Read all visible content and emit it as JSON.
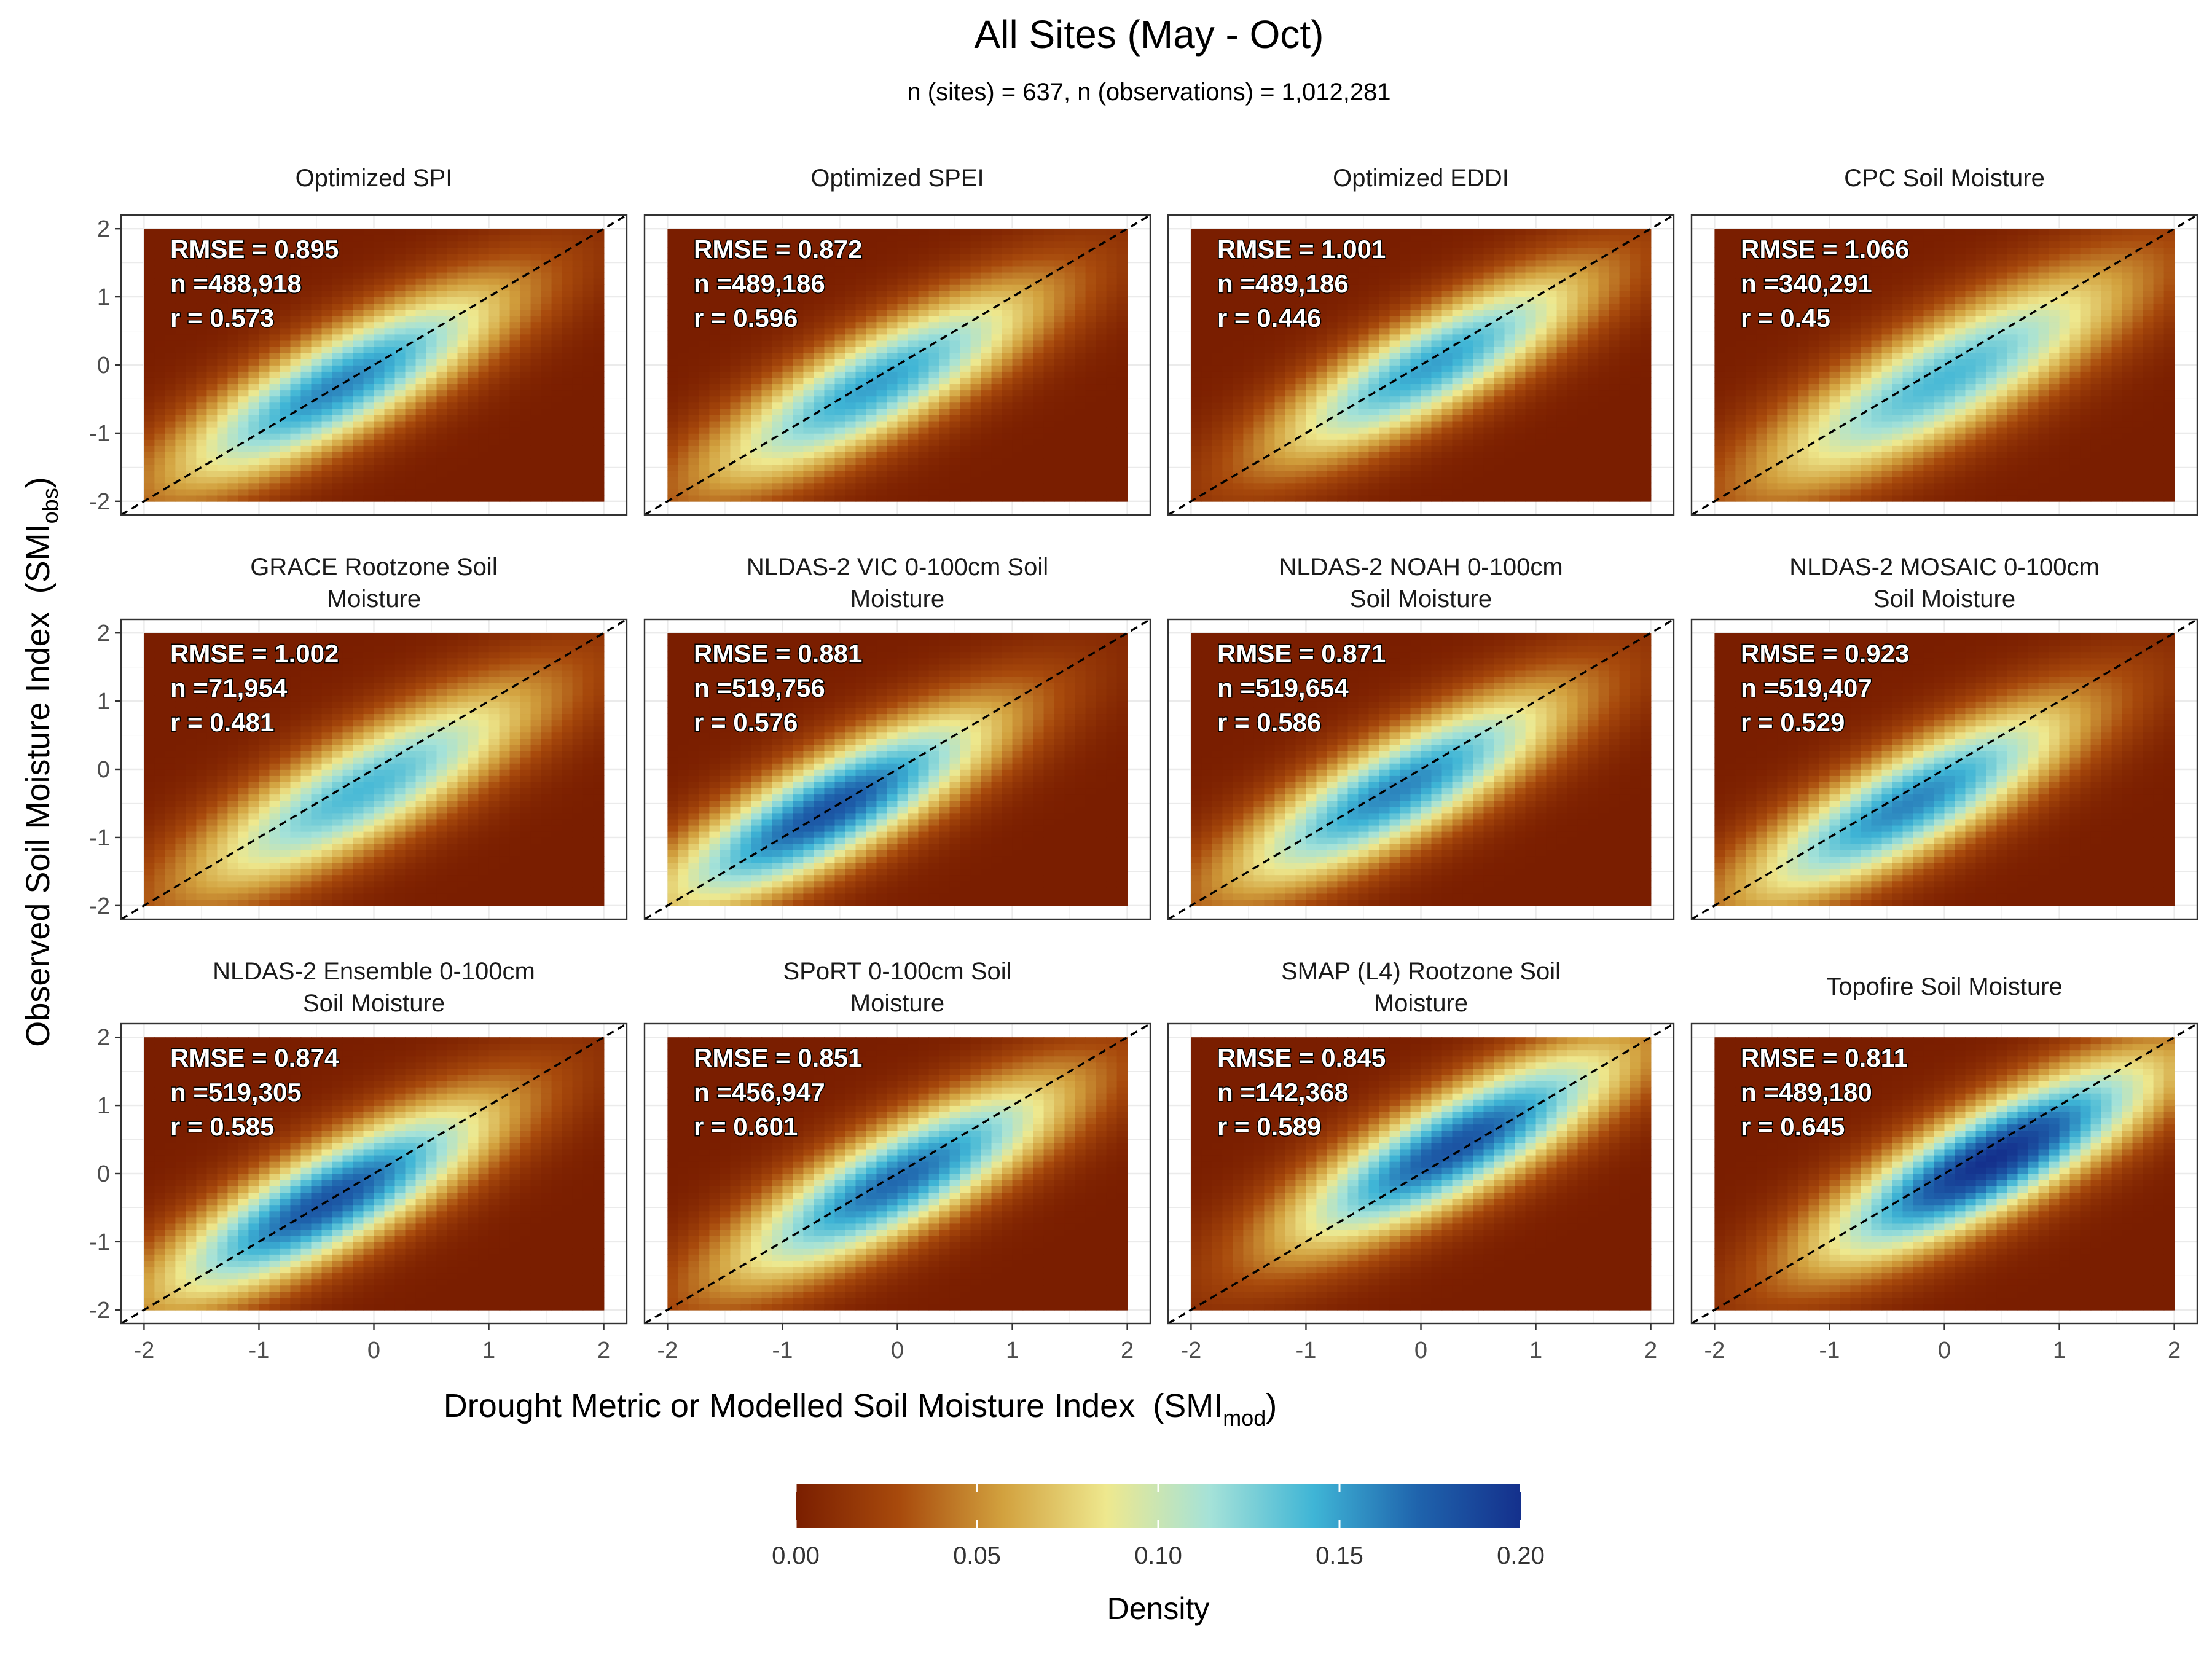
{
  "title": "All Sites (May - Oct)",
  "subtitle": "n (sites) = 637, n (observations) = 1,012,281",
  "x_axis_label": "Drought Metric or Modelled Soil Moisture Index",
  "x_axis_symbol": {
    "base": "SMI",
    "sub": "mod"
  },
  "y_axis_label": "Observed Soil Moisture Index",
  "y_axis_symbol": {
    "base": "SMI",
    "sub": "obs"
  },
  "stat_labels": {
    "rmse": "RMSE = ",
    "n": "n =",
    "r": "r = "
  },
  "legend": {
    "title": "Density",
    "ticks": [
      "0.00",
      "0.05",
      "0.10",
      "0.15",
      "0.20"
    ],
    "tick_values": [
      0,
      0.05,
      0.1,
      0.15,
      0.2
    ],
    "range": [
      0,
      0.2
    ],
    "colors": [
      "#7a1e00",
      "#a84a0c",
      "#d2a13e",
      "#eee88e",
      "#a5e2d8",
      "#3fb5d6",
      "#1f64ad",
      "#14308c"
    ],
    "placement": "bottom"
  },
  "chart_data": {
    "type": "heatmap",
    "x_ticks": [
      "-2",
      "-1",
      "0",
      "1",
      "2"
    ],
    "y_ticks": [
      "-2",
      "-1",
      "0",
      "1",
      "2"
    ],
    "xlim": [
      -2.2,
      2.2
    ],
    "ylim": [
      -2.2,
      2.2
    ],
    "reference_line": "1:1 dashed",
    "grid": true,
    "panels": [
      {
        "title": [
          "Optimized SPI"
        ],
        "rmse": "0.895",
        "n": "488,918",
        "r": "0.573",
        "center": [
          -0.3,
          -0.3
        ],
        "width": 1.05,
        "peak": 0.16
      },
      {
        "title": [
          "Optimized SPEI"
        ],
        "rmse": "0.872",
        "n": "489,186",
        "r": "0.596",
        "center": [
          -0.2,
          -0.3
        ],
        "width": 1.05,
        "peak": 0.15
      },
      {
        "title": [
          "Optimized EDDI"
        ],
        "rmse": "1.001",
        "n": "489,186",
        "r": "0.446",
        "center": [
          0.1,
          0.0
        ],
        "width": 1.0,
        "peak": 0.15
      },
      {
        "title": [
          "CPC Soil Moisture"
        ],
        "rmse": "1.066",
        "n": "340,291",
        "r": "0.45",
        "center": [
          0.0,
          -0.2
        ],
        "width": 1.15,
        "peak": 0.14
      },
      {
        "title": [
          "GRACE Rootzone Soil",
          "Moisture"
        ],
        "rmse": "1.002",
        "n": "71,954",
        "r": "0.481",
        "center": [
          -0.1,
          -0.3
        ],
        "width": 1.1,
        "peak": 0.14
      },
      {
        "title": [
          "NLDAS-2 VIC 0-100cm Soil",
          "Moisture"
        ],
        "rmse": "0.881",
        "n": "519,756",
        "r": "0.576",
        "center": [
          -0.6,
          -0.6
        ],
        "width": 1.05,
        "peak": 0.18
      },
      {
        "title": [
          "NLDAS-2 NOAH 0-100cm",
          "Soil Moisture"
        ],
        "rmse": "0.871",
        "n": "519,654",
        "r": "0.586",
        "center": [
          -0.2,
          -0.3
        ],
        "width": 1.05,
        "peak": 0.16
      },
      {
        "title": [
          "NLDAS-2 MOSAIC 0-100cm",
          "Soil Moisture"
        ],
        "rmse": "0.923",
        "n": "519,407",
        "r": "0.529",
        "center": [
          -0.3,
          -0.5
        ],
        "width": 1.05,
        "peak": 0.16
      },
      {
        "title": [
          "NLDAS-2 Ensemble 0-100cm",
          "Soil Moisture"
        ],
        "rmse": "0.874",
        "n": "519,305",
        "r": "0.585",
        "center": [
          -0.4,
          -0.4
        ],
        "width": 1.05,
        "peak": 0.18
      },
      {
        "title": [
          "SPoRT 0-100cm Soil",
          "Moisture"
        ],
        "rmse": "0.851",
        "n": "456,947",
        "r": "0.601",
        "center": [
          0.0,
          -0.1
        ],
        "width": 1.05,
        "peak": 0.17
      },
      {
        "title": [
          "SMAP (L4) Rootzone Soil",
          "Moisture"
        ],
        "rmse": "0.845",
        "n": "142,368",
        "r": "0.589",
        "center": [
          0.3,
          0.4
        ],
        "width": 1.05,
        "peak": 0.18
      },
      {
        "title": [
          "Topofire Soil Moisture"
        ],
        "rmse": "0.811",
        "n": "489,180",
        "r": "0.645",
        "center": [
          0.4,
          0.2
        ],
        "width": 1.05,
        "peak": 0.2
      }
    ]
  }
}
